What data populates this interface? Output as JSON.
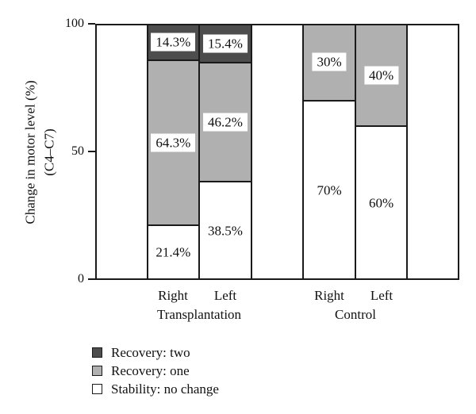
{
  "chart_data": {
    "type": "bar",
    "stacked": true,
    "title": "",
    "ylabel_lines": [
      "Change in motor level (%)",
      "(C4–C7)"
    ],
    "xlabel": "",
    "ylim": [
      0,
      100
    ],
    "yticks": [
      "100",
      "50",
      "0"
    ],
    "grid": false,
    "legend_position": "bottom-left",
    "series_order_bottom_to_top": [
      "Stability: no change",
      "Recovery: one",
      "Recovery: two"
    ],
    "groups": [
      {
        "label": "Transplantation",
        "bars": [
          {
            "label": "Right",
            "segments": [
              {
                "series": "Stability: no change",
                "value": 21.4,
                "label": "21.4%",
                "boxed": false
              },
              {
                "series": "Recovery: one",
                "value": 64.3,
                "label": "64.3%",
                "boxed": true
              },
              {
                "series": "Recovery: two",
                "value": 14.3,
                "label": "14.3%",
                "boxed": true
              }
            ]
          },
          {
            "label": "Left",
            "segments": [
              {
                "series": "Stability: no change",
                "value": 38.5,
                "label": "38.5%",
                "boxed": false
              },
              {
                "series": "Recovery: one",
                "value": 46.2,
                "label": "46.2%",
                "boxed": true
              },
              {
                "series": "Recovery: two",
                "value": 15.4,
                "label": "15.4%",
                "boxed": true
              }
            ]
          }
        ]
      },
      {
        "label": "Control",
        "bars": [
          {
            "label": "Right",
            "segments": [
              {
                "series": "Stability: no change",
                "value": 70,
                "label": "70%",
                "boxed": false
              },
              {
                "series": "Recovery: one",
                "value": 30,
                "label": "30%",
                "boxed": true
              }
            ]
          },
          {
            "label": "Left",
            "segments": [
              {
                "series": "Stability: no change",
                "value": 60,
                "label": "60%",
                "boxed": false
              },
              {
                "series": "Recovery: one",
                "value": 40,
                "label": "40%",
                "boxed": true
              }
            ]
          }
        ]
      }
    ]
  },
  "legend": {
    "items": [
      {
        "label": "Recovery: two",
        "color": "#4d4d4d"
      },
      {
        "label": "Recovery: one",
        "color": "#b0b0b0"
      },
      {
        "label": "Stability: no change",
        "color": "#ffffff"
      }
    ]
  },
  "colors": {
    "line": "#1a1a1a",
    "text": "#111111",
    "background": "#ffffff"
  }
}
